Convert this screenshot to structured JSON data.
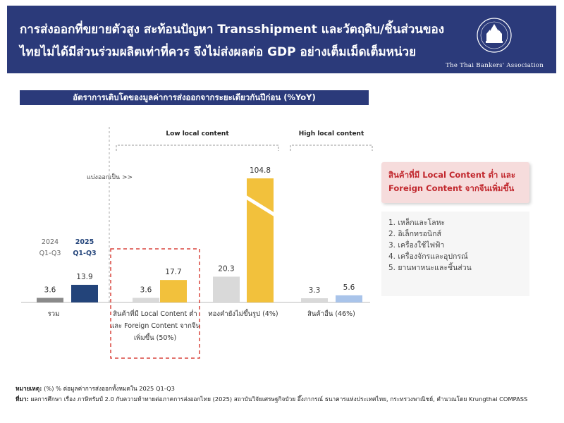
{
  "header": {
    "line1": "การส่งออกที่ขยายตัวสูง สะท้อนปัญหา Transshipment และวัตถุดิบ/ชิ้นส่วนของ",
    "line2": "ไทยไม่ได้มีส่วนร่วมผลิตเท่าที่ควร จึงไม่ส่งผลต่อ GDP อย่างเต็มเม็ดเต็มหน่วย",
    "logo_text": "The Thai Bankers' Association"
  },
  "chart_data": {
    "type": "bar",
    "title": "อัตราการเติบโตของมูลค่าการส่งออกจากระยะเดียวกันปีก่อน (%YoY)",
    "series": [
      {
        "name": "2024 Q1-Q3",
        "color": "#8a8a8a",
        "highlight_color": "#d9d9d9"
      },
      {
        "name": "2025 Q1-Q3",
        "color": "#23447a",
        "highlight_color": "#f2c13c"
      }
    ],
    "groups": [
      {
        "label": "รวม",
        "values": [
          3.6,
          13.9
        ],
        "colors": [
          "#8a8a8a",
          "#23447a"
        ]
      },
      {
        "label": "สินค้าที่มี Local Content ต่ำ และ Foreign Content จากจีน เพิ่มขึ้น (50%)",
        "values": [
          3.6,
          17.7
        ],
        "colors": [
          "#d9d9d9",
          "#f2c13c"
        ]
      },
      {
        "label": "ทองคำยังไม่ขึ้นรูป (4%)",
        "values": [
          20.3,
          104.8
        ],
        "colors": [
          "#d9d9d9",
          "#f2c13c"
        ],
        "broken_axis": true
      },
      {
        "label": "สินค้าอื่น (46%)",
        "values": [
          3.3,
          5.6
        ],
        "colors": [
          "#d9d9d9",
          "#a9c4ea"
        ]
      }
    ],
    "brackets": [
      {
        "label": "Low local content"
      },
      {
        "label": "High local content"
      }
    ],
    "divider_label": "แบ่งออกเป็น >>"
  },
  "callout": {
    "line1": "สินค้าที่มี Local Content ต่ำ และ",
    "line2": "Foreign Content จากจีนเพิ่มขึ้น"
  },
  "list": [
    "1. เหล็กและโลหะ",
    "2. อิเล็กทรอนิกส์",
    "3. เครื่องใช้ไฟฟ้า",
    "4. เครื่องจักรและอุปกรณ์",
    "5. ยานพาหนะและชิ้นส่วน"
  ],
  "notes": {
    "note_label": "หมายเหตุ:",
    "note_text": "(%) % ต่อมูลค่าการส่งออกทั้งหมดใน 2025 Q1-Q3",
    "source_label": "ที่มา:",
    "source_text": "ผลการศึกษา เรื่อง ภาษีทรัมป์ 2.0 กับความท้าทายต่อภาคการส่งออกไทย (2025) สถาบันวิจัยเศรษฐกิจป๋วย อึ๊งภากรณ์ ธนาคารแห่งประเทศไทย, กระทรวงพาณิชย์, คำนวณโดย Krungthai COMPASS"
  }
}
